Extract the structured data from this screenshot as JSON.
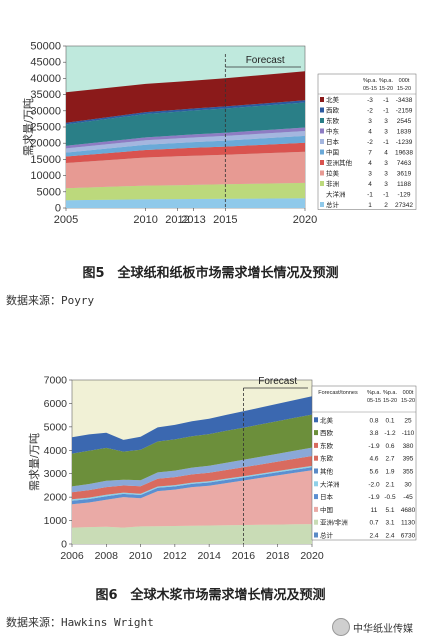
{
  "charts": [
    {
      "chart_data": {
        "type": "area",
        "title": "",
        "xlabel": "",
        "ylabel": "需求量/万吨",
        "x": [
          2005,
          2010,
          2012,
          2013,
          2015,
          2020
        ],
        "xlim": [
          2005,
          2020
        ],
        "ylim": [
          0,
          50000
        ],
        "yticks": [
          0,
          5000,
          10000,
          15000,
          20000,
          25000,
          30000,
          35000,
          40000,
          45000,
          50000
        ],
        "forecast_label": "Forecast",
        "forecast_start": 2015,
        "plot_background": "#bfe9dd",
        "series": [
          {
            "name": "总计",
            "color": "#8fc9ea",
            "values": [
              2400,
              2700,
              2750,
              2780,
              2850,
              3000
            ]
          },
          {
            "name": "非洲",
            "color": "#bcd97c",
            "values": [
              3700,
              4200,
              4300,
              4350,
              4450,
              4750
            ]
          },
          {
            "name": "拉美",
            "color": "#e79a93",
            "values": [
              7800,
              8700,
              8900,
              9000,
              9150,
              9600
            ]
          },
          {
            "name": "亚洲其他",
            "color": "#d9534f",
            "values": [
              2000,
              2300,
              2400,
              2450,
              2500,
              2800
            ]
          },
          {
            "name": "中国",
            "color": "#6aa9d8",
            "values": [
              1200,
              1600,
              1700,
              1750,
              1850,
              2100
            ]
          },
          {
            "name": "日本",
            "color": "#a4b6df",
            "values": [
              1300,
              1400,
              1420,
              1430,
              1450,
              1500
            ]
          },
          {
            "name": "中东",
            "color": "#8e7cc3",
            "values": [
              800,
              900,
              950,
              970,
              1000,
              1100
            ]
          },
          {
            "name": "东欧",
            "color": "#2a7f87",
            "values": [
              6600,
              7200,
              7300,
              7350,
              7450,
              7700
            ]
          },
          {
            "name": "西欧",
            "color": "#2c5aa0",
            "values": [
              500,
              600,
              620,
              630,
              650,
              700
            ]
          },
          {
            "name": "北美",
            "color": "#8b1a1a",
            "values": [
              9400,
              8700,
              8600,
              8600,
              8700,
              8950
            ]
          }
        ],
        "legend": {
          "placement": "right",
          "headers": [
            "%p.a.\n05-15",
            "%p.a.\n15-20",
            "000t\n15-20"
          ],
          "rows": [
            [
              "北美",
              "-3",
              "-1",
              "-3438"
            ],
            [
              "西欧",
              "-2",
              "-1",
              "-2159"
            ],
            [
              "东欧",
              "3",
              "3",
              "2545"
            ],
            [
              "中东",
              "4",
              "3",
              "1839"
            ],
            [
              "日本",
              "-2",
              "-1",
              "-1239"
            ],
            [
              "中国",
              "7",
              "4",
              "19638"
            ],
            [
              "亚洲其他",
              "4",
              "3",
              "7463"
            ],
            [
              "拉美",
              "3",
              "3",
              "3619"
            ],
            [
              "非洲",
              "4",
              "3",
              "1188"
            ],
            [
              "大洋洲",
              "-1",
              "-1",
              "-129"
            ],
            [
              "总计",
              "1",
              "2",
              "27342"
            ]
          ]
        }
      },
      "caption": "图5　全球纸和纸板市场需求增长情况及预测",
      "source": "数据来源：Poyry"
    },
    {
      "chart_data": {
        "type": "area",
        "title": "",
        "xlabel": "",
        "ylabel": "需求量/万吨",
        "x": [
          2006,
          2007,
          2008,
          2009,
          2010,
          2011,
          2012,
          2013,
          2014,
          2015,
          2016,
          2017,
          2018,
          2019,
          2020
        ],
        "xticks": [
          2006,
          2008,
          2010,
          2012,
          2014,
          2016,
          2018,
          2020
        ],
        "xlim": [
          2006,
          2020
        ],
        "ylim": [
          0,
          7000
        ],
        "yticks": [
          0,
          1000,
          2000,
          3000,
          4000,
          5000,
          6000,
          7000
        ],
        "forecast_label": "Forecast",
        "forecast_start": 2016,
        "plot_background": "#f1f1d6",
        "series": [
          {
            "name": "亚洲/非洲",
            "color": "#c9dcb6",
            "values": [
              700,
              720,
              740,
              700,
              750,
              760,
              770,
              780,
              790,
              800,
              810,
              820,
              830,
              840,
              850
            ]
          },
          {
            "name": "中国",
            "color": "#eaaaa6",
            "values": [
              1000,
              1050,
              1150,
              1300,
              1200,
              1500,
              1550,
              1650,
              1700,
              1800,
              1900,
              2000,
              2100,
              2200,
              2300
            ]
          },
          {
            "name": "日本",
            "color": "#5b8fd1",
            "values": [
              150,
              150,
              150,
              140,
              140,
              140,
              140,
              135,
              135,
              135,
              130,
              130,
              130,
              130,
              130
            ]
          },
          {
            "name": "大洋洲",
            "color": "#8fd0e8",
            "values": [
              60,
              60,
              60,
              55,
              55,
              55,
              55,
              55,
              55,
              55,
              55,
              55,
              55,
              55,
              55
            ]
          },
          {
            "name": "东欧",
            "color": "#d96b5f",
            "values": [
              300,
              320,
              330,
              300,
              320,
              330,
              340,
              350,
              360,
              370,
              380,
              390,
              400,
              410,
              420
            ]
          },
          {
            "name": "东欧",
            "color": "#8aa8d8",
            "values": [
              250,
              260,
              270,
              250,
              260,
              270,
              280,
              290,
              300,
              310,
              320,
              330,
              340,
              350,
              360
            ]
          },
          {
            "name": "西欧",
            "color": "#6c8f3b",
            "values": [
              1400,
              1420,
              1400,
              1200,
              1300,
              1320,
              1330,
              1340,
              1350,
              1360,
              1370,
              1380,
              1390,
              1400,
              1410
            ]
          },
          {
            "name": "北美",
            "color": "#3b68b0",
            "values": [
              700,
              700,
              650,
              500,
              550,
              600,
              620,
              640,
              660,
              680,
              700,
              720,
              740,
              760,
              780
            ]
          }
        ],
        "legend": {
          "placement": "right",
          "headers": [
            "Forecast/tonnes",
            "%p.a.\n05-15",
            "%p.a.\n15-20",
            "000t\n15-20"
          ],
          "rows": [
            [
              "北美",
              "0.8",
              "0.1",
              "25"
            ],
            [
              "西欧",
              "3.8",
              "-1.2",
              "-110"
            ],
            [
              "东欧",
              "-1.9",
              "0.6",
              "380"
            ],
            [
              "东欧",
              "4.6",
              "2.7",
              "395"
            ],
            [
              "其他",
              "5.6",
              "1.9",
              "355"
            ],
            [
              "大洋洲",
              "-2.0",
              "2.1",
              "30"
            ],
            [
              "日本",
              "-1.9",
              "-0.5",
              "-45"
            ],
            [
              "中国",
              "11",
              "5.1",
              "4680"
            ],
            [
              "亚洲/非洲",
              "0.7",
              "3.1",
              "1130"
            ],
            [
              "总计",
              "2.4",
              "2.4",
              "6730"
            ]
          ]
        }
      },
      "caption": "图6　全球木浆市场需求增长情况及预测",
      "source": "数据来源：Hawkins Wright"
    }
  ],
  "watermark": "中华纸业传媒"
}
